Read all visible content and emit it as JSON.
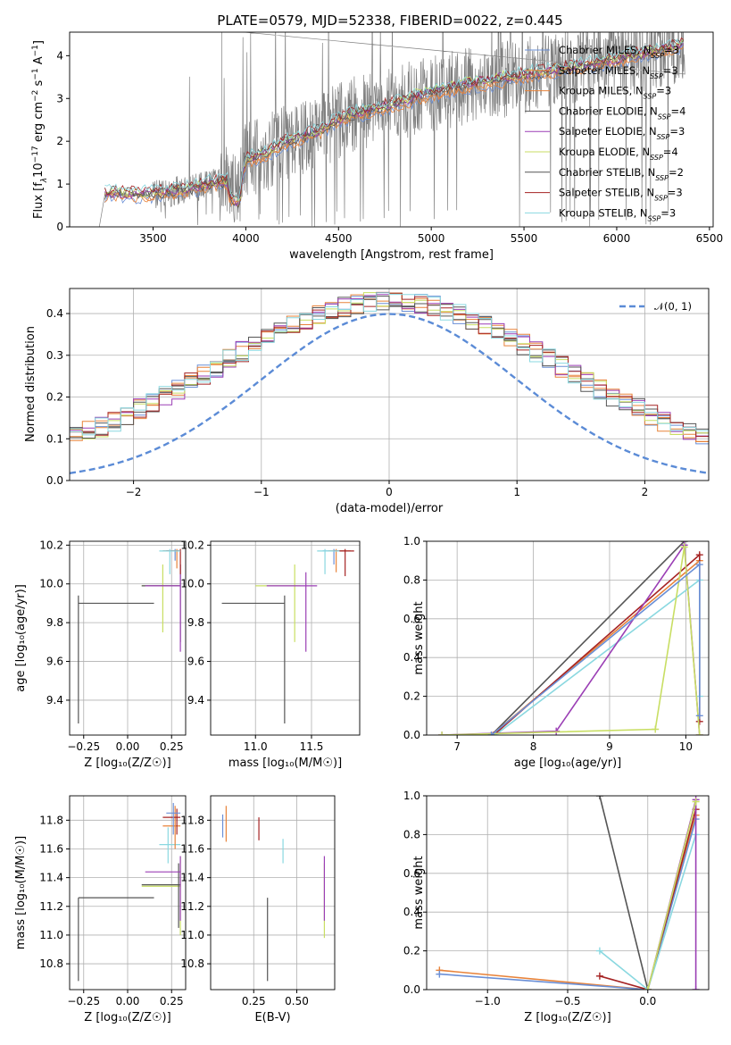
{
  "title": "PLATE=0579, MJD=52338, FIBERID=0022, z=0.445",
  "colors": {
    "Chabrier MILES": "#6a8fd6",
    "Salpeter MILES": "#e8833a",
    "Kroupa MILES": "#e8833a",
    "Chabrier ELODIE": "#555555",
    "Salpeter ELODIE": "#9b3fb5",
    "Kroupa ELODIE": "#c8de63",
    "Chabrier STELIB": "#555555",
    "Salpeter STELIB": "#a52323",
    "Kroupa STELIB": "#8ad8e0",
    "data": "#808080",
    "gauss": "#5b8bd6"
  },
  "chart_data": [
    {
      "id": "spectrum",
      "type": "line",
      "title": "PLATE=0579, MJD=52338, FIBERID=0022, z=0.445",
      "xlabel": "wavelength [Angstrom, rest frame]",
      "ylabel": "Flux [f",
      "xlim": [
        3050,
        6520
      ],
      "ylim": [
        0,
        4.55
      ],
      "xticks": [
        "3500",
        "4000",
        "4500",
        "5000",
        "5500",
        "6000",
        "6500"
      ],
      "yticks": [
        "0",
        "1",
        "2",
        "3",
        "4"
      ],
      "grid": false,
      "legend_position": "top-right",
      "legend": [
        {
          "name": "Chabrier MILES, N",
          "n": "3"
        },
        {
          "name": "Salpeter MILES, N",
          "n": "3"
        },
        {
          "name": "Kroupa MILES, N",
          "n": "3"
        },
        {
          "name": "Chabrier ELODIE, N",
          "n": "4"
        },
        {
          "name": "Salpeter ELODIE, N",
          "n": "3"
        },
        {
          "name": "Kroupa ELODIE, N",
          "n": "4"
        },
        {
          "name": "Chabrier STELIB, N",
          "n": "2"
        },
        {
          "name": "Salpeter STELIB, N",
          "n": "3"
        },
        {
          "name": "Kroupa STELIB, N",
          "n": "3"
        }
      ],
      "continuum": {
        "x": [
          3210,
          3240,
          3300,
          3400,
          3500,
          3600,
          3700,
          3800,
          3900,
          3960,
          4000,
          4100,
          4200,
          4300,
          4400,
          4500,
          4600,
          4700,
          4800,
          4900,
          5000,
          5100,
          5200,
          5300,
          5400,
          5500,
          5600,
          5700,
          5800,
          5900,
          6000,
          6100,
          6200,
          6300,
          6370
        ],
        "y": [
          0,
          0.75,
          0.8,
          0.75,
          0.78,
          0.82,
          0.88,
          1.0,
          1.05,
          0.85,
          1.55,
          1.7,
          1.95,
          2.1,
          2.25,
          2.5,
          2.65,
          2.75,
          2.85,
          3.0,
          3.1,
          3.2,
          3.3,
          3.35,
          3.45,
          3.55,
          3.6,
          3.7,
          3.75,
          3.85,
          3.9,
          4.0,
          4.1,
          4.2,
          4.3
        ]
      }
    },
    {
      "id": "residuals",
      "type": "line",
      "xlabel": "(data-model)/error",
      "ylabel": "Normed distribution",
      "xlim": [
        -2.5,
        2.5
      ],
      "ylim": [
        0,
        0.46
      ],
      "xticks": [
        "−2",
        "−1",
        "0",
        "1",
        "2"
      ],
      "yticks": [
        "0.0",
        "0.1",
        "0.2",
        "0.3",
        "0.4"
      ],
      "grid": true,
      "legend_position": "top-right",
      "legend": [
        {
          "name": "𝒩(0, 1)"
        }
      ],
      "gaussian": {
        "mu": 0,
        "sigma": 1
      }
    },
    {
      "id": "age-vs-Z",
      "type": "scatter",
      "xlabel": "Z [log₁₀(Z/Z☉)]",
      "ylabel": "age  [log₁₀(age/yr)]",
      "xlim": [
        -0.33,
        0.33
      ],
      "ylim": [
        9.22,
        10.22
      ],
      "xticks": [
        "−0.25",
        "0.00",
        "0.25"
      ],
      "yticks": [
        "9.4",
        "9.6",
        "9.8",
        "10.0",
        "10.2"
      ],
      "grid": true,
      "points": [
        {
          "s": "Chabrier STELIB",
          "x": -0.28,
          "y": 9.9,
          "xlo": -0.28,
          "xhi": 0.15,
          "ylo": 9.28,
          "yhi": 9.94
        },
        {
          "s": "Kroupa ELODIE",
          "x": 0.2,
          "y": 9.99,
          "xlo": 0.08,
          "xhi": 0.29,
          "ylo": 9.75,
          "yhi": 10.1
        },
        {
          "s": "Chabrier ELODIE",
          "x": 0.3,
          "y": 9.99,
          "xlo": 0.08,
          "xhi": 0.3,
          "ylo": 9.7,
          "yhi": 10.1
        },
        {
          "s": "Salpeter ELODIE",
          "x": 0.3,
          "y": 9.99,
          "xlo": 0.1,
          "xhi": 0.3,
          "ylo": 9.65,
          "yhi": 10.1
        },
        {
          "s": "Chabrier MILES",
          "x": 0.27,
          "y": 10.17,
          "xlo": 0.2,
          "xhi": 0.3,
          "ylo": 10.12,
          "yhi": 10.18
        },
        {
          "s": "Salpeter MILES",
          "x": 0.28,
          "y": 10.17,
          "xlo": 0.2,
          "xhi": 0.3,
          "ylo": 10.08,
          "yhi": 10.18
        },
        {
          "s": "Salpeter STELIB",
          "x": 0.3,
          "y": 10.17,
          "xlo": 0.22,
          "xhi": 0.3,
          "ylo": 10.05,
          "yhi": 10.18
        },
        {
          "s": "Kroupa STELIB",
          "x": 0.24,
          "y": 10.17,
          "xlo": 0.18,
          "xhi": 0.3,
          "ylo": 10.05,
          "yhi": 10.18
        }
      ]
    },
    {
      "id": "age-vs-mass",
      "type": "scatter",
      "xlabel": "mass [log₁₀(M/M☉)]",
      "ylabel": "",
      "xlim": [
        10.6,
        11.93
      ],
      "ylim": [
        9.22,
        10.22
      ],
      "xticks": [
        "11.0",
        "11.5"
      ],
      "yticks": [
        "9.4",
        "9.6",
        "9.8",
        "10.0",
        "10.2"
      ],
      "grid": true,
      "points": [
        {
          "s": "Chabrier STELIB",
          "x": 11.26,
          "y": 9.9,
          "xlo": 10.7,
          "xhi": 11.26,
          "ylo": 9.28,
          "yhi": 9.94
        },
        {
          "s": "Kroupa ELODIE",
          "x": 11.35,
          "y": 9.99,
          "xlo": 11.0,
          "xhi": 11.4,
          "ylo": 9.7,
          "yhi": 10.1
        },
        {
          "s": "Salpeter ELODIE",
          "x": 11.45,
          "y": 9.99,
          "xlo": 11.1,
          "xhi": 11.55,
          "ylo": 9.65,
          "yhi": 10.06
        },
        {
          "s": "Chabrier MILES",
          "x": 11.7,
          "y": 10.17,
          "xlo": 11.6,
          "xhi": 11.8,
          "ylo": 10.1,
          "yhi": 10.18
        },
        {
          "s": "Salpeter MILES",
          "x": 11.72,
          "y": 10.17,
          "xlo": 11.65,
          "xhi": 11.85,
          "ylo": 10.06,
          "yhi": 10.18
        },
        {
          "s": "Salpeter STELIB",
          "x": 11.8,
          "y": 10.17,
          "xlo": 11.7,
          "xhi": 11.88,
          "ylo": 10.04,
          "yhi": 10.18
        },
        {
          "s": "Kroupa STELIB",
          "x": 11.62,
          "y": 10.17,
          "xlo": 11.55,
          "xhi": 11.75,
          "ylo": 10.05,
          "yhi": 10.18
        }
      ]
    },
    {
      "id": "weight-vs-age",
      "type": "line",
      "xlabel": "age  [log₁₀(age/yr)]",
      "ylabel": "mass weight",
      "xlim": [
        6.6,
        10.3
      ],
      "ylim": [
        0,
        1
      ],
      "xticks": [
        "7",
        "8",
        "9",
        "10"
      ],
      "yticks": [
        "0.0",
        "0.2",
        "0.4",
        "0.6",
        "0.8",
        "1.0"
      ],
      "grid": true,
      "series": [
        {
          "s": "Chabrier STELIB",
          "x": [
            7.45,
            9.98
          ],
          "y": [
            0.0,
            1.0
          ]
        },
        {
          "s": "Salpeter MILES",
          "x": [
            7.45,
            10.18
          ],
          "y": [
            0.0,
            0.9
          ]
        },
        {
          "s": "Salpeter STELIB",
          "x": [
            7.48,
            10.18,
            10.18
          ],
          "y": [
            0.0,
            0.93,
            0.07
          ]
        },
        {
          "s": "Kroupa STELIB",
          "x": [
            7.5,
            10.18,
            10.18
          ],
          "y": [
            0.0,
            0.8,
            0.2
          ]
        },
        {
          "s": "Salpeter ELODIE",
          "x": [
            6.8,
            8.3,
            9.98,
            10.18
          ],
          "y": [
            0.0,
            0.02,
            0.98,
            0.0
          ]
        },
        {
          "s": "Kroupa ELODIE",
          "x": [
            6.8,
            9.6,
            9.98,
            10.18
          ],
          "y": [
            0.0,
            0.03,
            0.97,
            0.0
          ]
        },
        {
          "s": "Chabrier MILES",
          "x": [
            7.45,
            10.18,
            10.18
          ],
          "y": [
            0.0,
            0.88,
            0.1
          ]
        }
      ]
    },
    {
      "id": "mass-vs-Z",
      "type": "scatter",
      "xlabel": "Z [log₁₀(Z/Z☉)]",
      "ylabel": "mass [log₁₀(M/M☉)]",
      "xlim": [
        -0.33,
        0.33
      ],
      "ylim": [
        10.62,
        11.97
      ],
      "xticks": [
        "−0.25",
        "0.00",
        "0.25"
      ],
      "yticks": [
        "10.8",
        "11.0",
        "11.2",
        "11.4",
        "11.6",
        "11.8"
      ],
      "grid": true,
      "points": [
        {
          "s": "Chabrier STELIB",
          "x": -0.28,
          "y": 11.26,
          "xlo": -0.28,
          "xhi": 0.15,
          "ylo": 10.68,
          "yhi": 11.26
        },
        {
          "s": "Kroupa ELODIE",
          "x": 0.3,
          "y": 11.34,
          "xlo": 0.08,
          "xhi": 0.3,
          "ylo": 11.0,
          "yhi": 11.55
        },
        {
          "s": "Chabrier ELODIE",
          "x": 0.29,
          "y": 11.35,
          "xlo": 0.08,
          "xhi": 0.3,
          "ylo": 11.05,
          "yhi": 11.5
        },
        {
          "s": "Salpeter ELODIE",
          "x": 0.3,
          "y": 11.44,
          "xlo": 0.1,
          "xhi": 0.3,
          "ylo": 11.1,
          "yhi": 11.55
        },
        {
          "s": "Kroupa STELIB",
          "x": 0.23,
          "y": 11.63,
          "xlo": 0.18,
          "xhi": 0.3,
          "ylo": 11.5,
          "yhi": 11.75
        },
        {
          "s": "Salpeter MILES",
          "x": 0.27,
          "y": 11.76,
          "xlo": 0.2,
          "xhi": 0.3,
          "ylo": 11.6,
          "yhi": 11.9
        },
        {
          "s": "Salpeter STELIB",
          "x": 0.28,
          "y": 11.82,
          "xlo": 0.2,
          "xhi": 0.3,
          "ylo": 11.7,
          "yhi": 11.88
        },
        {
          "s": "Chabrier MILES",
          "x": 0.26,
          "y": 11.85,
          "xlo": 0.22,
          "xhi": 0.3,
          "ylo": 11.7,
          "yhi": 11.92
        }
      ]
    },
    {
      "id": "mass-vs-EBV",
      "type": "scatter",
      "xlabel": "E(B-V)",
      "ylabel": "",
      "xlim": [
        0.0,
        0.72
      ],
      "ylim": [
        10.62,
        11.97
      ],
      "xticks": [
        "0.25",
        "0.50"
      ],
      "yticks": [
        "10.8",
        "11.0",
        "11.2",
        "11.4",
        "11.6",
        "11.8"
      ],
      "grid": true,
      "points": [
        {
          "s": "Chabrier STELIB",
          "x": 0.33,
          "y": 11.26,
          "ylo": 10.68,
          "yhi": 11.26
        },
        {
          "s": "Kroupa ELODIE",
          "x": 0.66,
          "y": 11.35,
          "ylo": 10.98,
          "yhi": 11.5
        },
        {
          "s": "Salpeter ELODIE",
          "x": 0.66,
          "y": 11.44,
          "ylo": 11.1,
          "yhi": 11.55
        },
        {
          "s": "Kroupa STELIB",
          "x": 0.42,
          "y": 11.6,
          "ylo": 11.5,
          "yhi": 11.67
        },
        {
          "s": "Salpeter STELIB",
          "x": 0.28,
          "y": 11.75,
          "ylo": 11.66,
          "yhi": 11.82
        },
        {
          "s": "Chabrier MILES",
          "x": 0.07,
          "y": 11.78,
          "ylo": 11.68,
          "yhi": 11.84
        },
        {
          "s": "Salpeter MILES",
          "x": 0.09,
          "y": 11.8,
          "ylo": 11.65,
          "yhi": 11.9
        }
      ]
    },
    {
      "id": "weight-vs-Z",
      "type": "line",
      "xlabel": "Z [log₁₀(Z/Z☉)]",
      "ylabel": "mass weight",
      "xlim": [
        -1.38,
        0.38
      ],
      "ylim": [
        0,
        1
      ],
      "xticks": [
        "−1.0",
        "−0.5",
        "0.0"
      ],
      "yticks": [
        "0.0",
        "0.2",
        "0.4",
        "0.6",
        "0.8",
        "1.0"
      ],
      "grid": true,
      "series": [
        {
          "s": "Chabrier STELIB",
          "x": [
            -0.3,
            0.0
          ],
          "y": [
            1.0,
            0.0
          ]
        },
        {
          "s": "Salpeter MILES",
          "x": [
            -1.3,
            0.0,
            0.3
          ],
          "y": [
            0.1,
            0.0,
            0.9
          ]
        },
        {
          "s": "Chabrier MILES",
          "x": [
            -1.3,
            0.0,
            0.3
          ],
          "y": [
            0.08,
            0.0,
            0.88
          ]
        },
        {
          "s": "Salpeter STELIB",
          "x": [
            -0.3,
            0.0,
            0.3
          ],
          "y": [
            0.07,
            0.0,
            0.93
          ]
        },
        {
          "s": "Kroupa STELIB",
          "x": [
            -0.3,
            0.0,
            0.3
          ],
          "y": [
            0.2,
            0.0,
            0.8
          ]
        },
        {
          "s": "Salpeter ELODIE",
          "x": [
            0.0,
            0.3,
            0.3
          ],
          "y": [
            0.0,
            0.98,
            0.0
          ]
        },
        {
          "s": "Kroupa ELODIE",
          "x": [
            0.0,
            0.3
          ],
          "y": [
            0.0,
            0.97
          ]
        }
      ]
    }
  ]
}
